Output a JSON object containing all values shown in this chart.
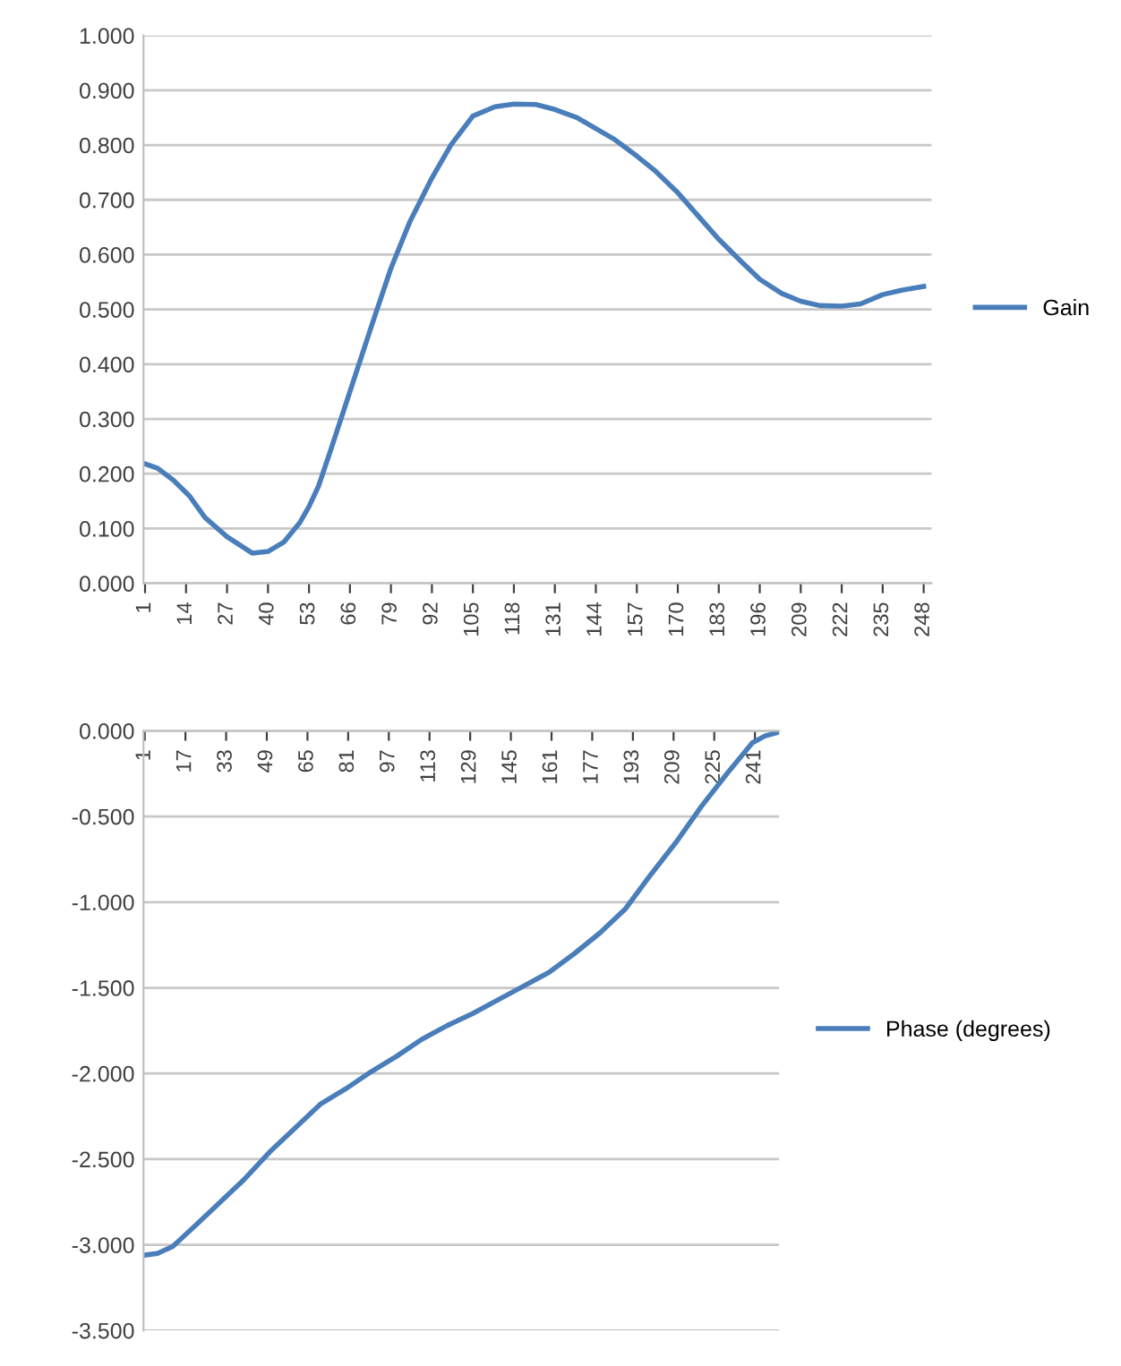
{
  "chart_data": [
    {
      "type": "line",
      "x": [
        1,
        5,
        10,
        15,
        20,
        27,
        35,
        40,
        45,
        50,
        53,
        56,
        60,
        66,
        72,
        74,
        79,
        85,
        92,
        98,
        105,
        112,
        118,
        125,
        131,
        138,
        144,
        150,
        157,
        163,
        170,
        177,
        183,
        190,
        196,
        203,
        209,
        215,
        222,
        228,
        235,
        241,
        248
      ],
      "series": [
        {
          "name": "Gain",
          "color": "#4a7ebb",
          "values": [
            0.218,
            0.21,
            0.188,
            0.16,
            0.12,
            0.085,
            0.055,
            0.058,
            0.075,
            0.11,
            0.14,
            0.177,
            0.245,
            0.35,
            0.455,
            0.49,
            0.575,
            0.66,
            0.74,
            0.8,
            0.853,
            0.87,
            0.875,
            0.874,
            0.865,
            0.85,
            0.83,
            0.81,
            0.78,
            0.752,
            0.713,
            0.667,
            0.628,
            0.588,
            0.555,
            0.529,
            0.515,
            0.507,
            0.506,
            0.51,
            0.527,
            0.535,
            0.542
          ]
        }
      ],
      "xlim": [
        0.5,
        250.5
      ],
      "xticks": [
        1,
        14,
        27,
        40,
        53,
        66,
        79,
        92,
        105,
        118,
        131,
        144,
        157,
        170,
        183,
        196,
        209,
        222,
        235,
        248
      ],
      "ylim": [
        0,
        1
      ],
      "yticks": [
        {
          "value": 0,
          "label": "0.000"
        },
        {
          "value": 0.1,
          "label": "0.100"
        },
        {
          "value": 0.2,
          "label": "0.200"
        },
        {
          "value": 0.3,
          "label": "0.300"
        },
        {
          "value": 0.4,
          "label": "0.400"
        },
        {
          "value": 0.5,
          "label": "0.500"
        },
        {
          "value": 0.6,
          "label": "0.600"
        },
        {
          "value": 0.7,
          "label": "0.700"
        },
        {
          "value": 0.8,
          "label": "0.800"
        },
        {
          "value": 0.9,
          "label": "0.900"
        },
        {
          "value": 1,
          "label": "1.000"
        }
      ],
      "grid": "y",
      "legend": "right"
    },
    {
      "type": "line",
      "x": [
        1,
        6,
        12,
        20,
        30,
        40,
        50,
        60,
        70,
        80,
        90,
        100,
        110,
        120,
        130,
        140,
        150,
        160,
        170,
        180,
        190,
        200,
        210,
        220,
        230,
        240,
        245,
        250
      ],
      "series": [
        {
          "name": "Phase (degrees)",
          "color": "#4a7ebb",
          "values": [
            -3.06,
            -3.05,
            -3.01,
            -2.9,
            -2.76,
            -2.62,
            -2.46,
            -2.32,
            -2.18,
            -2.09,
            -1.99,
            -1.9,
            -1.8,
            -1.72,
            -1.65,
            -1.57,
            -1.49,
            -1.41,
            -1.3,
            -1.18,
            -1.04,
            -0.84,
            -0.65,
            -0.44,
            -0.25,
            -0.07,
            -0.03,
            -0.01
          ]
        }
      ],
      "xlim": [
        0.5,
        250.5
      ],
      "xticks": [
        1,
        17,
        33,
        49,
        65,
        81,
        97,
        113,
        129,
        145,
        161,
        177,
        193,
        209,
        225,
        241
      ],
      "ylim": [
        -3.5,
        0
      ],
      "yticks": [
        {
          "value": -3.5,
          "label": "-3.500"
        },
        {
          "value": -3,
          "label": "-3.000"
        },
        {
          "value": -2.5,
          "label": "-2.500"
        },
        {
          "value": -2,
          "label": "-2.000"
        },
        {
          "value": -1.5,
          "label": "-1.500"
        },
        {
          "value": -1,
          "label": "-1.000"
        },
        {
          "value": -0.5,
          "label": "-0.500"
        },
        {
          "value": 0,
          "label": "0.000"
        }
      ],
      "grid": "y",
      "legend": "right"
    }
  ]
}
